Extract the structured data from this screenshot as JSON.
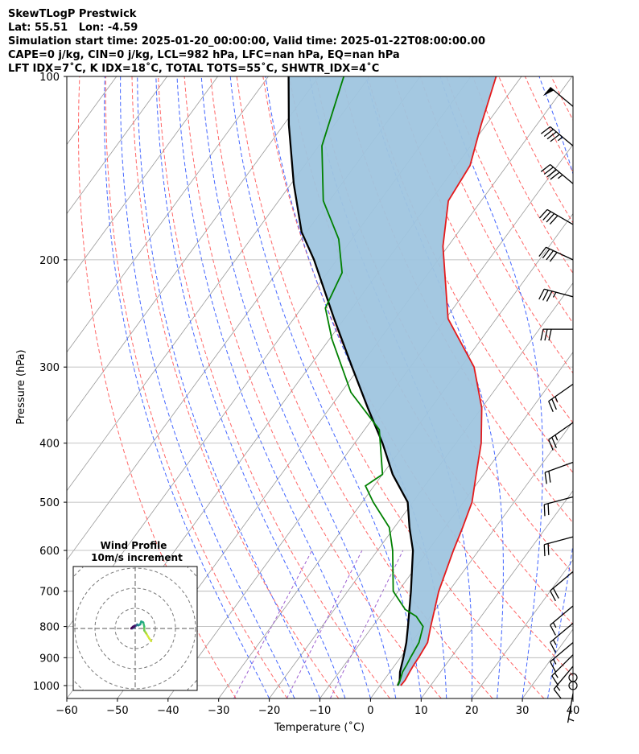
{
  "header": {
    "line1": "SkewTLogP Prestwick",
    "line2": "Lat: 55.51   Lon: -4.59",
    "line3": "Simulation start time: 2025-01-20_00:00:00, Valid time: 2025-01-22T08:00:00.00",
    "line4": "CAPE=0 j/kg, CIN=0 j/kg, LCL=982 hPa, LFC=nan hPa, EQ=nan hPa",
    "line5": "LFT IDX=7˚C, K IDX=18˚C, TOTAL TOTS=55˚C, SHWTR_IDX=4˚C"
  },
  "colors": {
    "temperature": "#e41a1c",
    "dewpoint": "#008000",
    "parcel": "#000000",
    "cape_fill": "#9fc5df",
    "dry_adiabat": "#ff6666",
    "moist_adiabat": "#4466ff",
    "mixing_ratio": "#9d5fd0",
    "isotherm": "#999999"
  },
  "chart_data": {
    "type": "line",
    "subtype": "skew-t log-p",
    "xlabel": "Temperature (˚C)",
    "ylabel": "Pressure (hPa)",
    "xlim": [
      -60,
      40
    ],
    "ylim": [
      1050,
      100
    ],
    "x_ticks": [
      "−60",
      "−50",
      "−40",
      "−30",
      "−20",
      "−10",
      "0",
      "10",
      "20",
      "30",
      "40"
    ],
    "y_ticks": [
      "100",
      "200",
      "300",
      "400",
      "500",
      "600",
      "700",
      "800",
      "900",
      "1000"
    ],
    "series": [
      {
        "name": "Temperature",
        "points": [
          [
            4.1,
            1000
          ],
          [
            4.2,
            980
          ],
          [
            3.9,
            950
          ],
          [
            3.7,
            925
          ],
          [
            3.6,
            900
          ],
          [
            3.2,
            850
          ],
          [
            1.5,
            800
          ],
          [
            -2.0,
            700
          ],
          [
            -5.0,
            600
          ],
          [
            -6.5,
            550
          ],
          [
            -8.3,
            500
          ],
          [
            -11.5,
            450
          ],
          [
            -15.0,
            400
          ],
          [
            -20.0,
            350
          ],
          [
            -27.4,
            300
          ],
          [
            -39.5,
            250
          ],
          [
            -43.0,
            230
          ],
          [
            -51.0,
            190
          ],
          [
            -56.5,
            160
          ],
          [
            -57.3,
            140
          ],
          [
            -61.0,
            120
          ],
          [
            -65.0,
            100
          ]
        ]
      },
      {
        "name": "Dewpoint",
        "points": [
          [
            3.5,
            1000
          ],
          [
            3.2,
            980
          ],
          [
            2.5,
            950
          ],
          [
            2.3,
            925
          ],
          [
            2.0,
            900
          ],
          [
            1.5,
            850
          ],
          [
            0.0,
            800
          ],
          [
            -2.8,
            770
          ],
          [
            -6.0,
            750
          ],
          [
            -11.0,
            700
          ],
          [
            -17.0,
            600
          ],
          [
            -21.0,
            550
          ],
          [
            -27.8,
            500
          ],
          [
            -31.7,
            470
          ],
          [
            -30.0,
            450
          ],
          [
            -37.1,
            380
          ],
          [
            -48.1,
            330
          ],
          [
            -59.5,
            270
          ],
          [
            -65.3,
            240
          ],
          [
            -67.1,
            210
          ],
          [
            -72.6,
            185
          ],
          [
            -81.2,
            160
          ],
          [
            -89.4,
            130
          ],
          [
            -95.1,
            100
          ]
        ]
      },
      {
        "name": "Parcel",
        "points": [
          [
            3.5,
            1000
          ],
          [
            3.2,
            982
          ],
          [
            2.0,
            950
          ],
          [
            0.6,
            900
          ],
          [
            -1.0,
            850
          ],
          [
            -3.0,
            800
          ],
          [
            -7.5,
            700
          ],
          [
            -13.0,
            600
          ],
          [
            -17.0,
            550
          ],
          [
            -21.0,
            500
          ],
          [
            -28.0,
            450
          ],
          [
            -34.5,
            400
          ],
          [
            -42.5,
            350
          ],
          [
            -51.5,
            300
          ],
          [
            -62.0,
            250
          ],
          [
            -74.5,
            200
          ],
          [
            -81.0,
            180
          ],
          [
            -89.5,
            150
          ],
          [
            -99.0,
            120
          ],
          [
            -106.0,
            100
          ]
        ]
      }
    ],
    "cape_shading": "between Parcel and Temperature",
    "wind_barbs": {
      "units": "kt",
      "levels": [
        {
          "p": 1030,
          "speed": 3,
          "dir": 190
        },
        {
          "p": 1000,
          "speed": 0,
          "dir": 0
        },
        {
          "p": 970,
          "speed": 0,
          "dir": 0
        },
        {
          "p": 930,
          "speed": 15,
          "dir": 220
        },
        {
          "p": 890,
          "speed": 15,
          "dir": 225
        },
        {
          "p": 850,
          "speed": 15,
          "dir": 230
        },
        {
          "p": 790,
          "speed": 15,
          "dir": 230
        },
        {
          "p": 740,
          "speed": 15,
          "dir": 230
        },
        {
          "p": 650,
          "speed": 20,
          "dir": 230
        },
        {
          "p": 570,
          "speed": 20,
          "dir": 255
        },
        {
          "p": 490,
          "speed": 20,
          "dir": 255
        },
        {
          "p": 430,
          "speed": 20,
          "dir": 250
        },
        {
          "p": 370,
          "speed": 25,
          "dir": 235
        },
        {
          "p": 320,
          "speed": 25,
          "dir": 235
        },
        {
          "p": 260,
          "speed": 30,
          "dir": 270
        },
        {
          "p": 230,
          "speed": 35,
          "dir": 285
        },
        {
          "p": 200,
          "speed": 40,
          "dir": 295
        },
        {
          "p": 175,
          "speed": 40,
          "dir": 300
        },
        {
          "p": 150,
          "speed": 45,
          "dir": 310
        },
        {
          "p": 130,
          "speed": 45,
          "dir": 310
        },
        {
          "p": 112,
          "speed": 50,
          "dir": 310
        }
      ]
    },
    "hodograph": {
      "title": "Wind Profile",
      "subtitle": "10m/s increment",
      "ring_interval_ms": 10,
      "points": [
        [
          8.0,
          -6.3
        ],
        [
          7.0,
          -5.0
        ],
        [
          5.5,
          -2.5
        ],
        [
          4.5,
          -1.0
        ],
        [
          4.5,
          1.0
        ],
        [
          4.0,
          3.0
        ],
        [
          3.0,
          3.5
        ],
        [
          2.5,
          2.0
        ],
        [
          1.5,
          1.5
        ],
        [
          1.0,
          2.0
        ],
        [
          0.5,
          1.5
        ],
        [
          -0.5,
          0.5
        ],
        [
          -1.5,
          0.0
        ],
        [
          -1.0,
          1.0
        ],
        [
          0.0,
          1.5
        ],
        [
          -0.5,
          1.0
        ],
        [
          -1.5,
          0.5
        ],
        [
          -2.0,
          0.0
        ]
      ]
    }
  }
}
